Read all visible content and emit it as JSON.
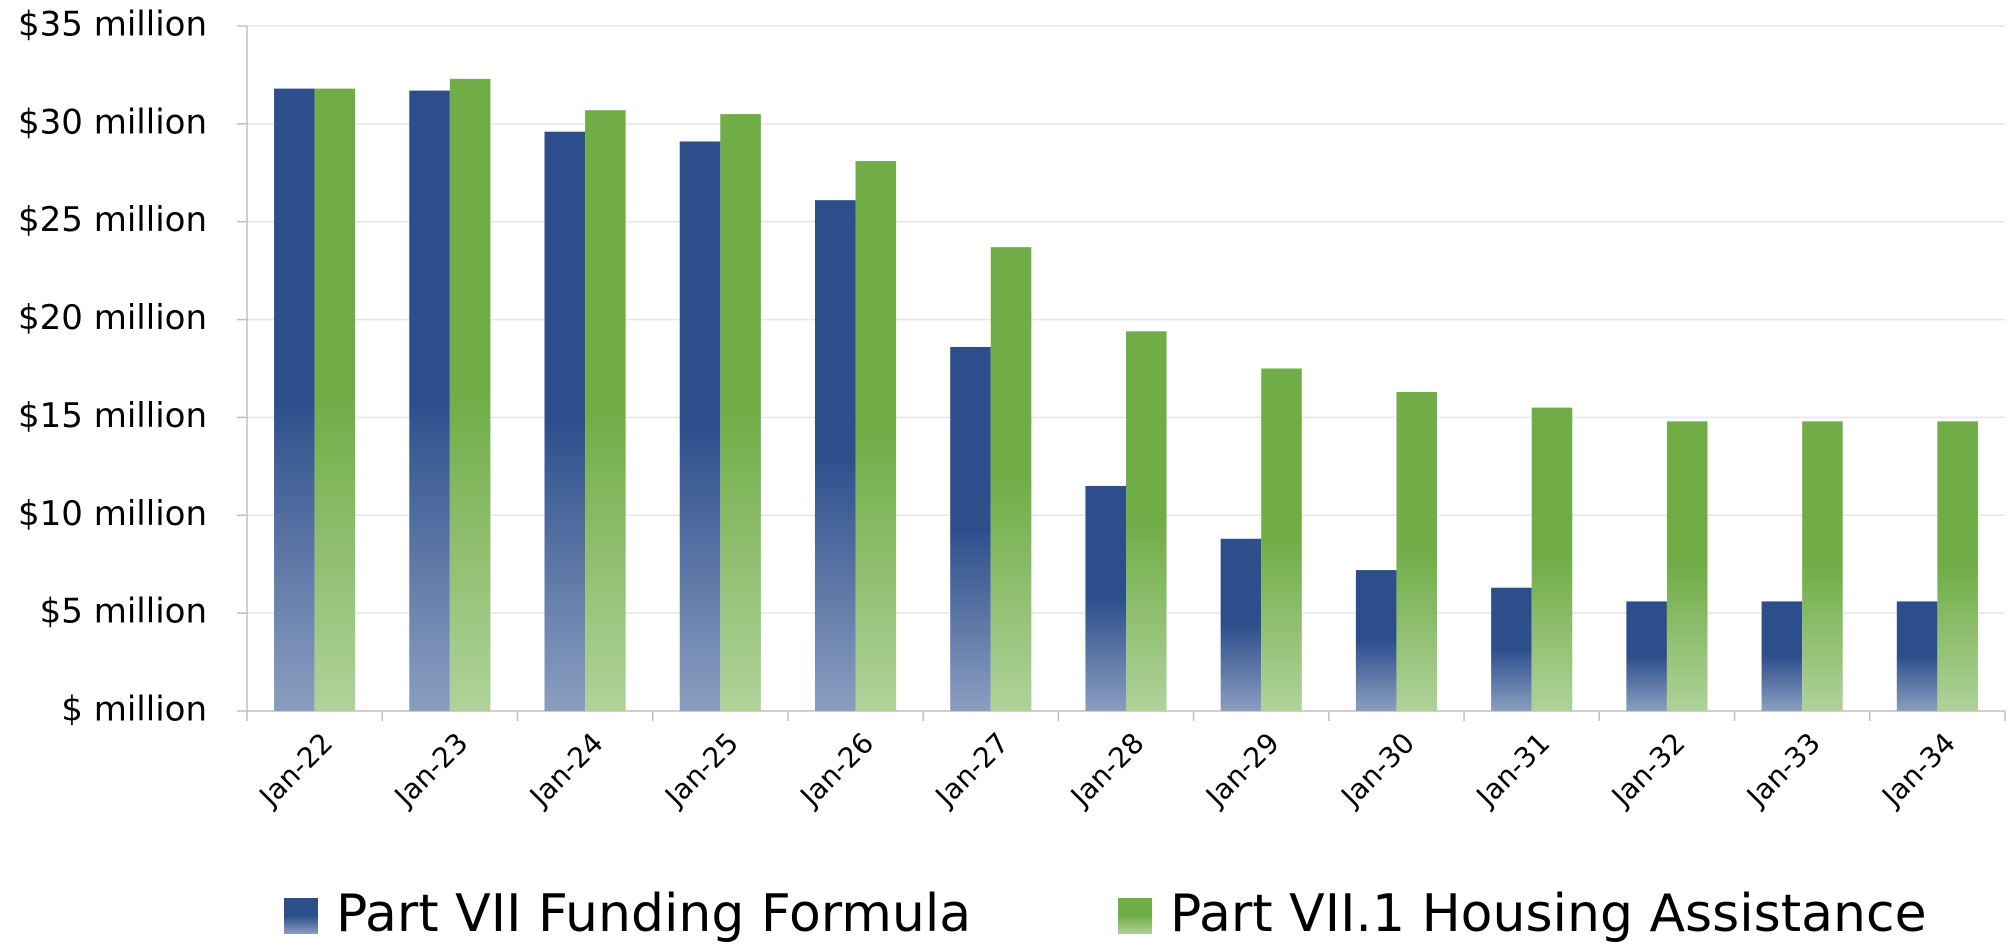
{
  "chart_data": {
    "type": "bar",
    "categories": [
      "Jan-22",
      "Jan-23",
      "Jan-24",
      "Jan-25",
      "Jan-26",
      "Jan-27",
      "Jan-28",
      "Jan-29",
      "Jan-30",
      "Jan-31",
      "Jan-32",
      "Jan-33",
      "Jan-34"
    ],
    "series": [
      {
        "name": "Part VII Funding Formula",
        "color": "#2c4f8c",
        "values": [
          31.8,
          31.7,
          29.6,
          29.1,
          26.1,
          18.6,
          11.5,
          8.8,
          7.2,
          6.3,
          5.6,
          5.6,
          5.6
        ]
      },
      {
        "name": "Part VII.1 Housing Assistance",
        "color": "#70ad47",
        "values": [
          31.8,
          32.3,
          30.7,
          30.5,
          28.1,
          23.7,
          19.4,
          17.5,
          16.3,
          15.5,
          14.8,
          14.8,
          14.8
        ]
      }
    ],
    "ylim": [
      0,
      35
    ],
    "yticks": [
      {
        "value": 0,
        "label": "$ million"
      },
      {
        "value": 5,
        "label": "$5 million"
      },
      {
        "value": 10,
        "label": "$10 million"
      },
      {
        "value": 15,
        "label": "$15 million"
      },
      {
        "value": 20,
        "label": "$20 million"
      },
      {
        "value": 25,
        "label": "$25 million"
      },
      {
        "value": 30,
        "label": "$30 million"
      },
      {
        "value": 35,
        "label": "$35 million"
      }
    ],
    "grid": true,
    "legend": "bottom"
  }
}
